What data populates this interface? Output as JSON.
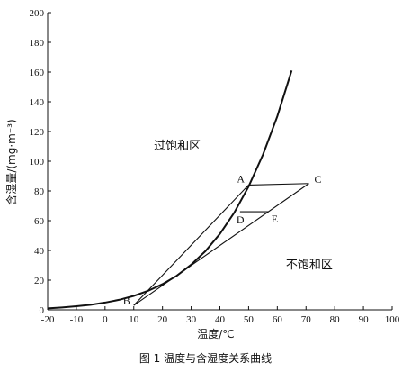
{
  "chart_data": {
    "type": "line",
    "xlabel": "温度/℃",
    "ylabel": "含湿量/(mg·m⁻³)",
    "x_ticks": [
      -20,
      -10,
      0,
      10,
      20,
      30,
      40,
      50,
      60,
      70,
      80,
      90,
      100
    ],
    "y_ticks": [
      0,
      20,
      40,
      60,
      80,
      100,
      120,
      140,
      160,
      180,
      200
    ],
    "xlim": [
      -20,
      100
    ],
    "ylim": [
      0,
      200
    ],
    "grid": false,
    "saturation_curve": {
      "x": [
        -20,
        -15,
        -10,
        -5,
        0,
        5,
        10,
        15,
        20,
        25,
        30,
        35,
        40,
        45,
        50,
        55,
        60,
        65
      ],
      "y": [
        1.0,
        1.6,
        2.4,
        3.4,
        4.9,
        6.8,
        9.4,
        12.8,
        17.3,
        23.0,
        30.4,
        39.6,
        51.1,
        65.4,
        83.0,
        104.4,
        130.2,
        161.0
      ]
    },
    "points": [
      {
        "label": "A",
        "x": 50,
        "y": 84
      },
      {
        "label": "B",
        "x": 10,
        "y": 3
      },
      {
        "label": "C",
        "x": 71,
        "y": 85
      },
      {
        "label": "D",
        "x": 47,
        "y": 66
      },
      {
        "label": "E",
        "x": 57,
        "y": 66
      }
    ],
    "segments": [
      {
        "from": "B",
        "to": "A"
      },
      {
        "from": "A",
        "to": "C"
      },
      {
        "from": "B",
        "to": "C"
      },
      {
        "from": "D",
        "to": "E"
      }
    ],
    "regions": [
      {
        "label": "过饱和区",
        "x": 17,
        "y": 108
      },
      {
        "label": "不饱和区",
        "x": 63,
        "y": 28
      }
    ]
  },
  "caption": "图 1    温度与含湿度关系曲线"
}
